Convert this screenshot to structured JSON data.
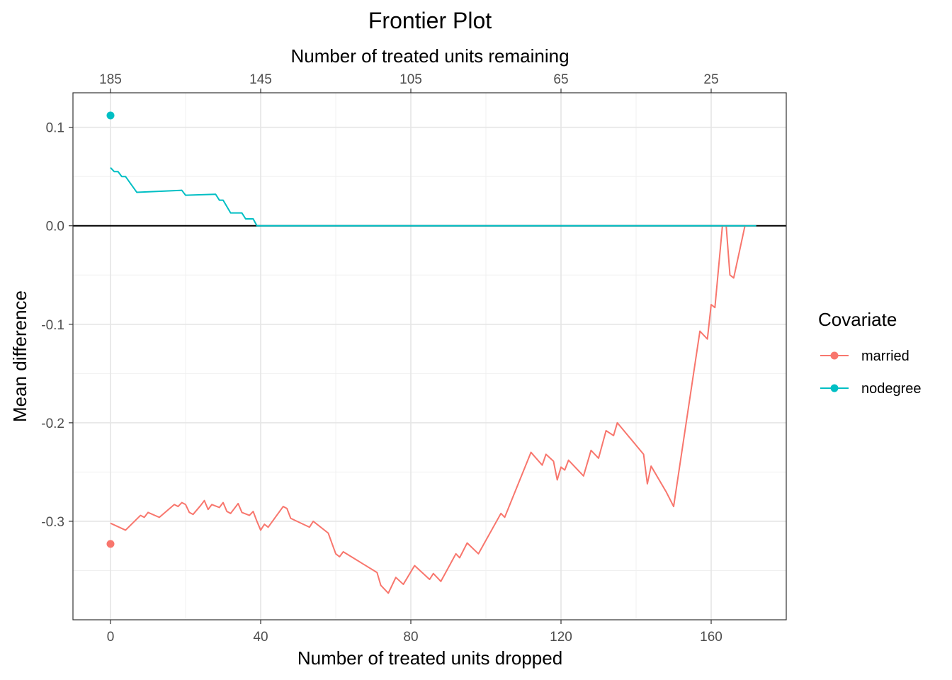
{
  "chart_data": {
    "type": "line",
    "title": "Frontier Plot",
    "xlabel": "Number of treated units dropped",
    "x2label": "Number of treated units remaining",
    "ylabel": "Mean difference",
    "xlim": [
      -10,
      180
    ],
    "ylim": [
      -0.4,
      0.135
    ],
    "x_ticks": [
      0,
      40,
      80,
      120,
      160
    ],
    "x_tick_labels": [
      "0",
      "40",
      "80",
      "120",
      "160"
    ],
    "x2_ticks": [
      0,
      40,
      80,
      120,
      160
    ],
    "x2_tick_labels": [
      "185",
      "145",
      "105",
      "65",
      "25"
    ],
    "y_ticks": [
      0.1,
      0.0,
      -0.1,
      -0.2,
      -0.3
    ],
    "y_tick_labels": [
      "0.1",
      "0.0",
      "-0.1",
      "-0.2",
      "-0.3"
    ],
    "y_minor_ticks": [
      0.05,
      -0.05,
      -0.15,
      -0.25,
      -0.35
    ],
    "x_minor_ticks": [
      20,
      60,
      100,
      140
    ],
    "grid": true,
    "reference_line_y": 0,
    "legend": {
      "title": "Covariate",
      "position": "right",
      "entries": [
        "married",
        "nodegree"
      ]
    },
    "series": [
      {
        "name": "married",
        "color": "#F8766D",
        "start_point": [
          0,
          -0.323
        ],
        "points": [
          [
            0,
            -0.302
          ],
          [
            4,
            -0.309
          ],
          [
            8,
            -0.294
          ],
          [
            9,
            -0.296
          ],
          [
            10,
            -0.291
          ],
          [
            13,
            -0.296
          ],
          [
            17,
            -0.283
          ],
          [
            18,
            -0.285
          ],
          [
            19,
            -0.281
          ],
          [
            20,
            -0.283
          ],
          [
            21,
            -0.291
          ],
          [
            22,
            -0.293
          ],
          [
            24,
            -0.284
          ],
          [
            25,
            -0.279
          ],
          [
            26,
            -0.288
          ],
          [
            27,
            -0.283
          ],
          [
            29,
            -0.286
          ],
          [
            30,
            -0.281
          ],
          [
            31,
            -0.29
          ],
          [
            32,
            -0.292
          ],
          [
            34,
            -0.282
          ],
          [
            35,
            -0.291
          ],
          [
            37,
            -0.294
          ],
          [
            38,
            -0.29
          ],
          [
            39,
            -0.3
          ],
          [
            40,
            -0.309
          ],
          [
            41,
            -0.303
          ],
          [
            42,
            -0.306
          ],
          [
            46,
            -0.285
          ],
          [
            47,
            -0.287
          ],
          [
            48,
            -0.297
          ],
          [
            53,
            -0.306
          ],
          [
            54,
            -0.3
          ],
          [
            58,
            -0.312
          ],
          [
            60,
            -0.333
          ],
          [
            61,
            -0.336
          ],
          [
            62,
            -0.331
          ],
          [
            71,
            -0.352
          ],
          [
            72,
            -0.365
          ],
          [
            74,
            -0.373
          ],
          [
            76,
            -0.357
          ],
          [
            78,
            -0.364
          ],
          [
            81,
            -0.345
          ],
          [
            85,
            -0.359
          ],
          [
            86,
            -0.353
          ],
          [
            88,
            -0.361
          ],
          [
            92,
            -0.333
          ],
          [
            93,
            -0.337
          ],
          [
            95,
            -0.322
          ],
          [
            98,
            -0.333
          ],
          [
            104,
            -0.292
          ],
          [
            105,
            -0.296
          ],
          [
            112,
            -0.23
          ],
          [
            115,
            -0.243
          ],
          [
            116,
            -0.232
          ],
          [
            118,
            -0.239
          ],
          [
            119,
            -0.258
          ],
          [
            120,
            -0.245
          ],
          [
            121,
            -0.248
          ],
          [
            122,
            -0.238
          ],
          [
            126,
            -0.254
          ],
          [
            128,
            -0.228
          ],
          [
            130,
            -0.236
          ],
          [
            132,
            -0.208
          ],
          [
            134,
            -0.213
          ],
          [
            135,
            -0.2
          ],
          [
            142,
            -0.232
          ],
          [
            143,
            -0.262
          ],
          [
            144,
            -0.244
          ],
          [
            148,
            -0.27
          ],
          [
            150,
            -0.285
          ],
          [
            157,
            -0.107
          ],
          [
            159,
            -0.115
          ],
          [
            160,
            -0.08
          ],
          [
            161,
            -0.083
          ],
          [
            163,
            0.0
          ],
          [
            164,
            0.0
          ],
          [
            165,
            -0.05
          ],
          [
            166,
            -0.053
          ],
          [
            169,
            0.0
          ],
          [
            172,
            0.0
          ]
        ]
      },
      {
        "name": "nodegree",
        "color": "#00BFC4",
        "start_point": [
          0,
          0.112
        ],
        "points": [
          [
            0,
            0.059
          ],
          [
            1,
            0.055
          ],
          [
            2,
            0.055
          ],
          [
            3,
            0.05
          ],
          [
            4,
            0.05
          ],
          [
            7,
            0.034
          ],
          [
            19,
            0.036
          ],
          [
            20,
            0.031
          ],
          [
            28,
            0.032
          ],
          [
            29,
            0.026
          ],
          [
            30,
            0.026
          ],
          [
            32,
            0.013
          ],
          [
            35,
            0.013
          ],
          [
            36,
            0.007
          ],
          [
            38,
            0.007
          ],
          [
            39,
            0.0
          ],
          [
            172,
            0.0
          ]
        ]
      }
    ]
  }
}
